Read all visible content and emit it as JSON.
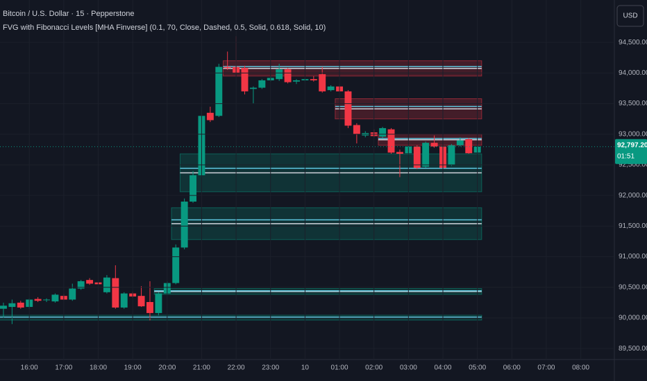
{
  "chart_data": {
    "type": "candlestick",
    "title": "Bitcoin / U.S. Dollar · 15 · Pepperstone",
    "subtitle": "FVG with Fibonacci Levels [MHA Finverse] (0.1, 70, Close, Dashed, 0.5, Solid, 0.618, Solid, 10)",
    "currency": "USD",
    "up_color": "#089981",
    "down_color": "#f23645",
    "open": [
      90150,
      90180,
      90250,
      90180,
      90310,
      90290,
      90270,
      90360,
      90300,
      90480,
      90620,
      90580,
      90420,
      90650,
      90170,
      90400,
      90360,
      90260,
      90080,
      90400,
      90570,
      91150,
      91900,
      92330,
      93350,
      93300,
      94100,
      94100,
      94080,
      93740,
      93760,
      93880,
      93900,
      94060,
      93860,
      93880,
      93900,
      93980,
      93720,
      93780,
      93700,
      93150,
      92980,
      93030,
      92960,
      93080,
      92710,
      92690,
      92800,
      92470,
      92860,
      92800,
      92500,
      92820,
      92920,
      92700
    ],
    "high": [
      90250,
      90300,
      90280,
      90320,
      90340,
      90320,
      90400,
      90390,
      90560,
      90620,
      90650,
      90610,
      90700,
      90860,
      90420,
      90430,
      90520,
      90600,
      90420,
      90600,
      91200,
      91950,
      92400,
      93450,
      93450,
      94150,
      94350,
      94600,
      94120,
      93780,
      93900,
      93950,
      94150,
      94080,
      93900,
      93920,
      93950,
      94100,
      93800,
      93820,
      93720,
      93180,
      93050,
      93080,
      93120,
      93100,
      92750,
      92820,
      92820,
      92880,
      92980,
      92830,
      92840,
      92950,
      92940,
      92820
    ],
    "low": [
      90000,
      89900,
      90150,
      90150,
      90260,
      90260,
      90250,
      90290,
      90280,
      90460,
      90540,
      90520,
      90400,
      90150,
      90150,
      90330,
      90180,
      89960,
      90040,
      90380,
      90550,
      91120,
      91880,
      92300,
      93200,
      93280,
      94050,
      93980,
      93650,
      93500,
      93740,
      93860,
      93870,
      93830,
      93820,
      93860,
      93860,
      93680,
      93700,
      93680,
      93100,
      92850,
      92950,
      92950,
      92940,
      92680,
      92300,
      92660,
      92430,
      92450,
      92780,
      92430,
      92480,
      92800,
      92680,
      92680
    ],
    "close": [
      90200,
      90240,
      90170,
      90300,
      90280,
      90300,
      90380,
      90300,
      90480,
      90600,
      90560,
      90550,
      90660,
      90170,
      90400,
      90350,
      90190,
      90080,
      90400,
      90570,
      91150,
      91900,
      92330,
      93300,
      93230,
      94100,
      94080,
      94000,
      93700,
      93760,
      93880,
      93920,
      94060,
      93850,
      93880,
      93900,
      93880,
      93700,
      93780,
      93700,
      93140,
      93000,
      93020,
      92970,
      93100,
      92700,
      92680,
      92800,
      92450,
      92860,
      92800,
      92450,
      92820,
      92900,
      92690,
      92797.2
    ],
    "xlim": [
      -0.4,
      70.9
    ],
    "xticks": [
      {
        "value": 3,
        "label": "16:00"
      },
      {
        "value": 7,
        "label": "17:00"
      },
      {
        "value": 11,
        "label": "18:00"
      },
      {
        "value": 15,
        "label": "19:00"
      },
      {
        "value": 19,
        "label": "20:00"
      },
      {
        "value": 23,
        "label": "21:00"
      },
      {
        "value": 27,
        "label": "22:00"
      },
      {
        "value": 31,
        "label": "23:00"
      },
      {
        "value": 35,
        "label": "10"
      },
      {
        "value": 39,
        "label": "01:00"
      },
      {
        "value": 43,
        "label": "02:00"
      },
      {
        "value": 47,
        "label": "03:00"
      },
      {
        "value": 51,
        "label": "04:00"
      },
      {
        "value": 55,
        "label": "05:00"
      },
      {
        "value": 59,
        "label": "06:00"
      },
      {
        "value": 63,
        "label": "07:00"
      },
      {
        "value": 67,
        "label": "08:00"
      }
    ],
    "ylim": [
      89321,
      95192
    ],
    "yticks": [
      {
        "value": 94500,
        "label": "94,500.00"
      },
      {
        "value": 94000,
        "label": "94,000.00"
      },
      {
        "value": 93500,
        "label": "93,500.00"
      },
      {
        "value": 93000,
        "label": "93,000.00"
      },
      {
        "value": 92500,
        "label": "92,500.00"
      },
      {
        "value": 92000,
        "label": "92,000.00"
      },
      {
        "value": 91500,
        "label": "91,500.00"
      },
      {
        "value": 91000,
        "label": "91,000.00"
      },
      {
        "value": 90500,
        "label": "90,500.00"
      },
      {
        "value": 90000,
        "label": "90,000.00"
      },
      {
        "value": 89500,
        "label": "89,500.00"
      }
    ],
    "fib_levels": [
      0.5,
      0.618
    ],
    "zones": [
      {
        "start": 26,
        "end": 55,
        "low": 93950,
        "high": 94200,
        "color": "#f23645"
      },
      {
        "start": 39,
        "end": 55,
        "low": 93250,
        "high": 93580,
        "color": "#f23645"
      },
      {
        "start": 44,
        "end": 55,
        "low": 92820,
        "high": 93000,
        "color": "#f23645"
      },
      {
        "start": 21,
        "end": 55,
        "low": 92060,
        "high": 92680,
        "color": "#089981"
      },
      {
        "start": 20,
        "end": 55,
        "low": 91280,
        "high": 91800,
        "color": "#089981"
      },
      {
        "start": 18,
        "end": 55,
        "low": 90385,
        "high": 90480,
        "color": "#089981"
      },
      {
        "start": 0,
        "end": 55,
        "low": 89965,
        "high": 90045,
        "color": "#089981"
      }
    ],
    "price_line": {
      "value": 92797.2,
      "label": "92,797.20",
      "countdown": "01:51"
    }
  }
}
